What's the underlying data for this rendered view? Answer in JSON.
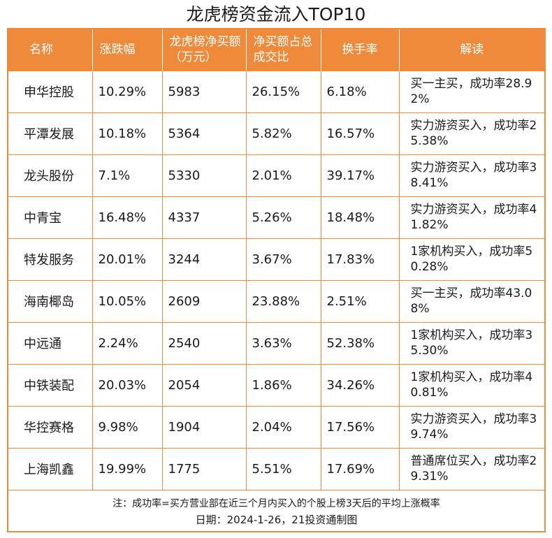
{
  "title": "龙虎榜资金流入TOP10",
  "header": {
    "name": "名称",
    "change": "涨跌幅",
    "net_buy": "龙虎榜净买额（万元）",
    "ratio": "净买额占总成交比",
    "turnover": "换手率",
    "interpretation": "解读"
  },
  "rows": [
    {
      "name": "申华控股",
      "change": "10.29%",
      "net_buy": "5983",
      "ratio": "26.15%",
      "turnover": "6.18%",
      "interpretation": "买一主买，成功率28.92%"
    },
    {
      "name": "平潭发展",
      "change": "10.18%",
      "net_buy": "5364",
      "ratio": "5.82%",
      "turnover": "16.57%",
      "interpretation": "实力游资买入，成功率25.38%"
    },
    {
      "name": "龙头股份",
      "change": "7.1%",
      "net_buy": "5330",
      "ratio": "2.01%",
      "turnover": "39.17%",
      "interpretation": "实力游资买入，成功率38.41%"
    },
    {
      "name": "中青宝",
      "change": "16.48%",
      "net_buy": "4337",
      "ratio": "5.26%",
      "turnover": "18.48%",
      "interpretation": "实力游资买入，成功率41.82%"
    },
    {
      "name": "特发服务",
      "change": "20.01%",
      "net_buy": "3244",
      "ratio": "3.67%",
      "turnover": "17.83%",
      "interpretation": "1家机构买入，成功率50.28%"
    },
    {
      "name": "海南椰岛",
      "change": "10.05%",
      "net_buy": "2609",
      "ratio": "23.88%",
      "turnover": "2.51%",
      "interpretation": "买一主买，成功率43.08%"
    },
    {
      "name": "中远通",
      "change": "2.24%",
      "net_buy": "2540",
      "ratio": "3.63%",
      "turnover": "52.38%",
      "interpretation": "1家机构买入，成功率35.30%"
    },
    {
      "name": "中铁装配",
      "change": "20.03%",
      "net_buy": "2054",
      "ratio": "1.86%",
      "turnover": "34.26%",
      "interpretation": "1家机构买入，成功率40.81%"
    },
    {
      "name": "华控赛格",
      "change": "9.98%",
      "net_buy": "1904",
      "ratio": "2.04%",
      "turnover": "17.56%",
      "interpretation": "实力游资买入，成功率39.74%"
    },
    {
      "name": "上海凯鑫",
      "change": "19.99%",
      "net_buy": "1775",
      "ratio": "5.51%",
      "turnover": "17.69%",
      "interpretation": "普通席位买入，成功率29.31%"
    }
  ],
  "footer": {
    "note": "注：成功率=买方营业部在近三个月内买入的个股上榜3天后的平均上涨概率",
    "date": "日期：2024-1-26，21投资通制图"
  },
  "colors": {
    "accent": "#ef8a3a",
    "header_text": "#ffffff",
    "body_text": "#1a1a1a"
  }
}
